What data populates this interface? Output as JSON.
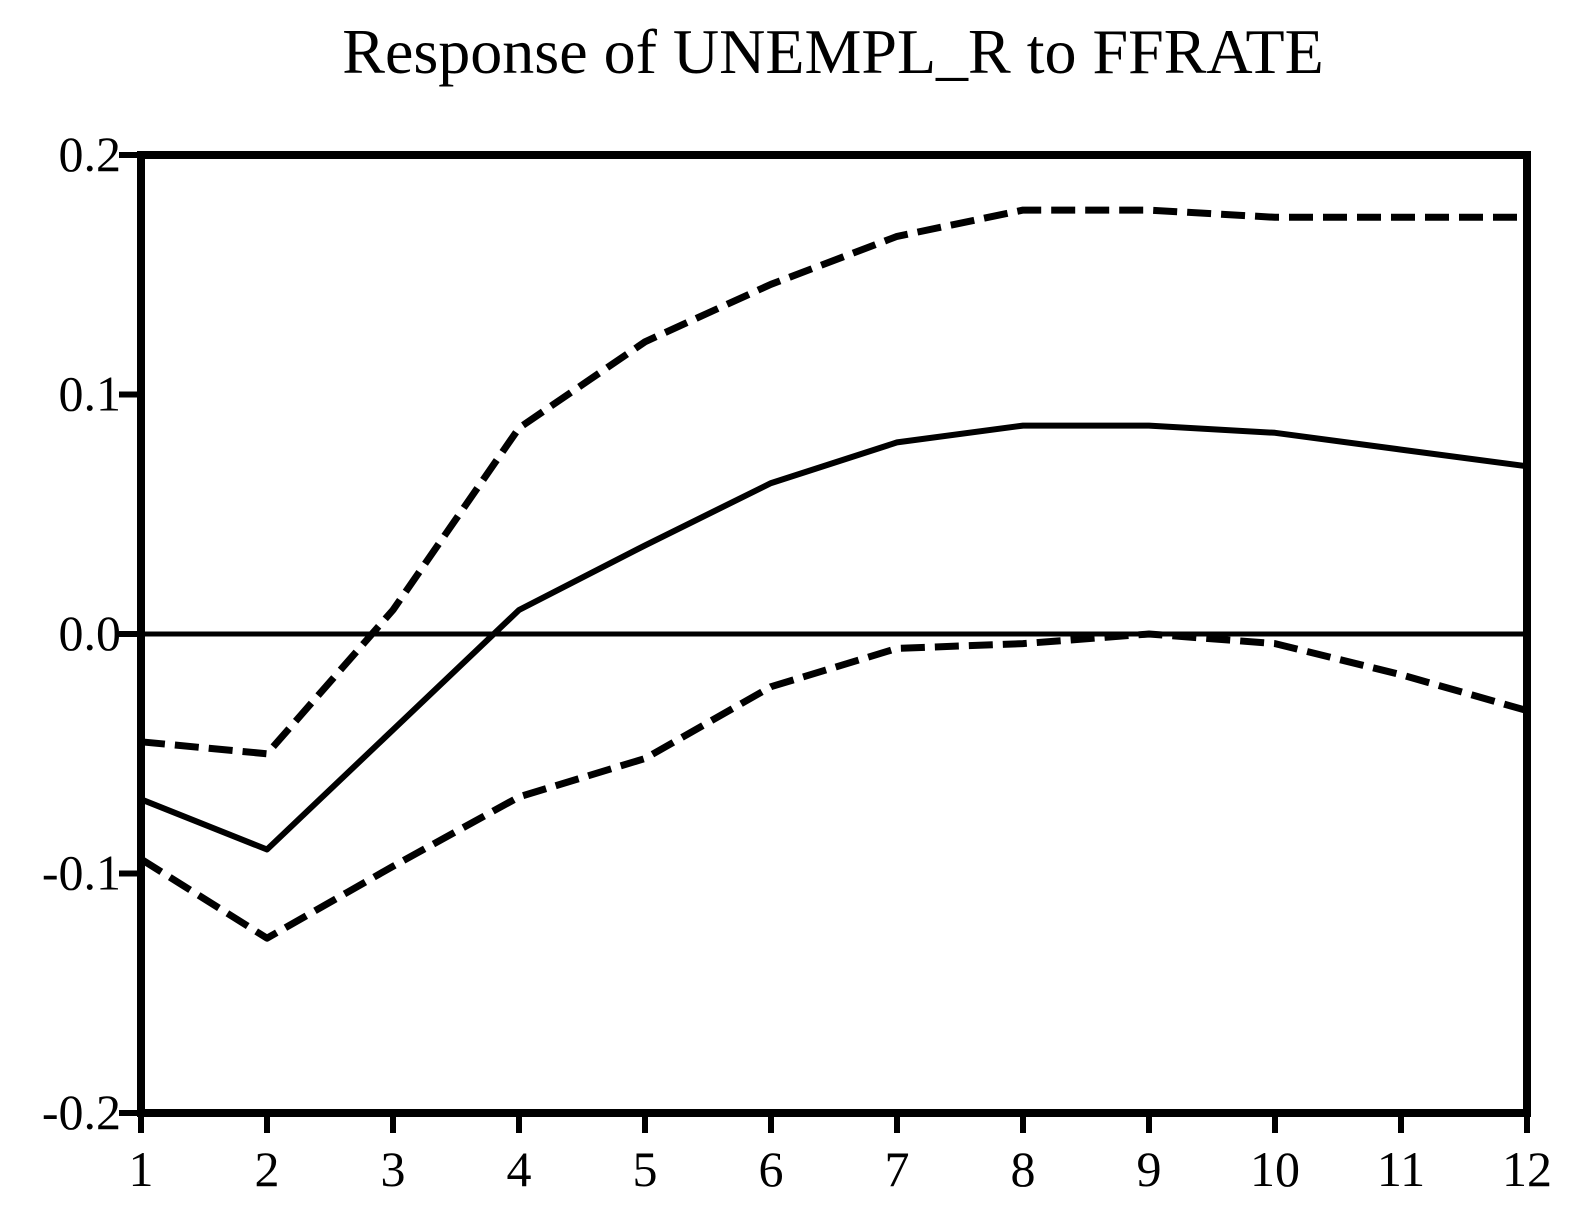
{
  "chart_data": {
    "type": "line",
    "title": "Response of UNEMPL_R to FFRATE",
    "xlabel": "",
    "ylabel": "",
    "x": [
      1,
      2,
      3,
      4,
      5,
      6,
      7,
      8,
      9,
      10,
      11,
      12
    ],
    "x_tick_labels": [
      "1",
      "2",
      "3",
      "4",
      "5",
      "6",
      "7",
      "8",
      "9",
      "10",
      "11",
      "12"
    ],
    "y_tick_values": [
      0.2,
      0.1,
      0.0,
      -0.1,
      -0.2
    ],
    "y_tick_labels": [
      "0.2",
      "0.1",
      "0.0",
      "-0.1",
      "-0.2"
    ],
    "xlim": [
      1,
      12
    ],
    "ylim": [
      -0.2,
      0.2
    ],
    "grid": false,
    "zero_line": true,
    "series": [
      {
        "style": "solid",
        "values": [
          -0.069,
          -0.09,
          -0.04,
          0.01,
          0.037,
          0.063,
          0.08,
          0.087,
          0.087,
          0.084,
          0.077,
          0.07
        ]
      },
      {
        "style": "dashed",
        "values": [
          -0.045,
          -0.05,
          0.01,
          0.086,
          0.122,
          0.146,
          0.166,
          0.177,
          0.177,
          0.174,
          0.174,
          0.174
        ]
      },
      {
        "style": "dashed",
        "values": [
          -0.094,
          -0.127,
          -0.097,
          -0.068,
          -0.052,
          -0.022,
          -0.006,
          -0.004,
          0.0,
          -0.004,
          -0.017,
          -0.032
        ]
      }
    ],
    "colors": {
      "line": "#000000",
      "axis": "#000000"
    }
  }
}
